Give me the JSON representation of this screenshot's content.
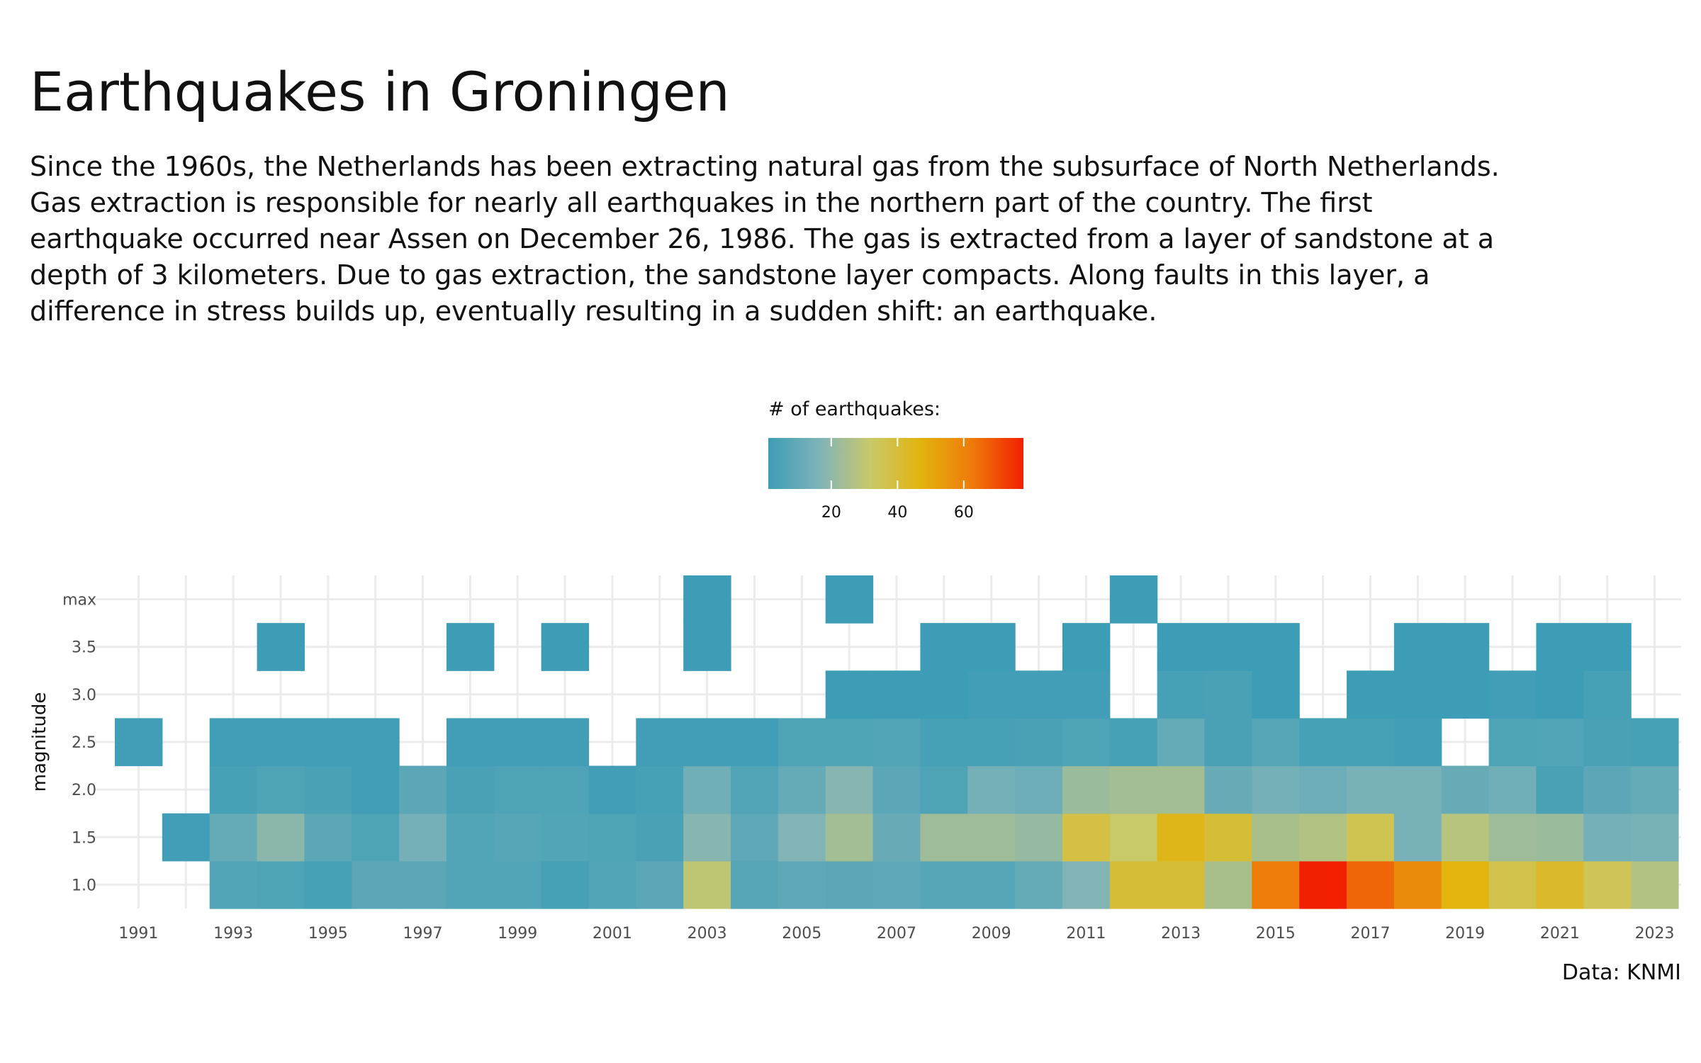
{
  "title": "Earthquakes in Groningen",
  "subtitle": "Since the 1960s, the Netherlands has been extracting natural gas from the subsurface of North Netherlands. Gas extraction is responsible for nearly all earthquakes in the northern part of the country. The first earthquake occurred near Assen on December 26, 1986. The gas is extracted from a layer of sandstone at a depth of 3 kilometers. Due to gas extraction, the sandstone layer compacts. Along faults in this layer, a difference in stress builds up, eventually resulting in a sudden shift: an earthquake.",
  "caption": "Data: KNMI",
  "colors": {
    "scale": [
      "#3d9db6",
      "#7fb3b8",
      "#c8c96a",
      "#e3b30d",
      "#ee7a0a",
      "#f21f00"
    ],
    "grid": "#ebebeb",
    "axis_text": "#4d4d4d"
  },
  "chart_data": {
    "type": "heatmap",
    "title": "Earthquakes in Groningen",
    "xlabel": "",
    "ylabel": "magnitude",
    "x_ticks": [
      "1991",
      "1993",
      "1995",
      "1997",
      "1999",
      "2001",
      "2003",
      "2005",
      "2007",
      "2009",
      "2011",
      "2013",
      "2015",
      "2017",
      "2019",
      "2021",
      "2023"
    ],
    "y_ticks": [
      "1.0",
      "1.5",
      "2.0",
      "2.5",
      "3.0",
      "3.5",
      "max"
    ],
    "legend": {
      "title": "# of earthquakes:",
      "placement": "top-center",
      "range": [
        1,
        78
      ],
      "ticks": [
        20,
        40,
        60
      ]
    },
    "years": [
      1991,
      1992,
      1993,
      1994,
      1995,
      1996,
      1997,
      1998,
      1999,
      2000,
      2001,
      2002,
      2003,
      2004,
      2005,
      2006,
      2007,
      2008,
      2009,
      2010,
      2011,
      2012,
      2013,
      2014,
      2015,
      2016,
      2017,
      2018,
      2019,
      2020,
      2021,
      2022,
      2023
    ],
    "magnitudes": [
      "1.0",
      "1.5",
      "2.0",
      "2.5",
      "3.0",
      "3.5",
      "max"
    ],
    "counts": {
      "1.0": [
        0,
        0,
        6,
        5,
        3,
        8,
        8,
        6,
        6,
        3,
        6,
        8,
        30,
        7,
        9,
        8,
        9,
        7,
        7,
        10,
        17,
        40,
        40,
        25,
        62,
        78,
        66,
        58,
        47,
        37,
        42,
        35,
        27
      ],
      "1.5": [
        0,
        2,
        10,
        19,
        8,
        5,
        14,
        6,
        7,
        6,
        5,
        4,
        18,
        9,
        17,
        24,
        11,
        23,
        23,
        21,
        38,
        32,
        45,
        40,
        25,
        27,
        36,
        15,
        28,
        23,
        22,
        14,
        15
      ],
      "2.0": [
        0,
        0,
        3,
        5,
        4,
        2,
        8,
        4,
        5,
        5,
        2,
        3,
        13,
        6,
        10,
        18,
        8,
        5,
        14,
        12,
        22,
        24,
        24,
        11,
        14,
        12,
        15,
        15,
        11,
        13,
        4,
        8,
        10
      ],
      "2.5": [
        2,
        0,
        2,
        2,
        2,
        2,
        0,
        2,
        2,
        2,
        0,
        2,
        2,
        2,
        5,
        5,
        6,
        3,
        3,
        4,
        5,
        3,
        10,
        4,
        7,
        3,
        3,
        2,
        0,
        5,
        6,
        4,
        3
      ],
      "3.0": [
        0,
        0,
        0,
        0,
        0,
        0,
        0,
        0,
        0,
        0,
        0,
        0,
        0,
        0,
        0,
        1,
        1,
        1,
        2,
        2,
        2,
        0,
        3,
        4,
        1,
        0,
        1,
        1,
        1,
        2,
        1,
        3,
        0
      ],
      "3.5": [
        0,
        0,
        0,
        1,
        0,
        0,
        0,
        1,
        0,
        1,
        0,
        0,
        1,
        0,
        0,
        0,
        0,
        1,
        1,
        0,
        1,
        0,
        1,
        1,
        1,
        0,
        0,
        1,
        1,
        0,
        1,
        1,
        0
      ],
      "max": [
        0,
        0,
        0,
        0,
        0,
        0,
        0,
        0,
        0,
        0,
        0,
        0,
        1,
        0,
        0,
        1,
        0,
        0,
        0,
        0,
        0,
        1,
        0,
        0,
        0,
        0,
        0,
        0,
        0,
        0,
        0,
        0,
        0
      ]
    }
  }
}
